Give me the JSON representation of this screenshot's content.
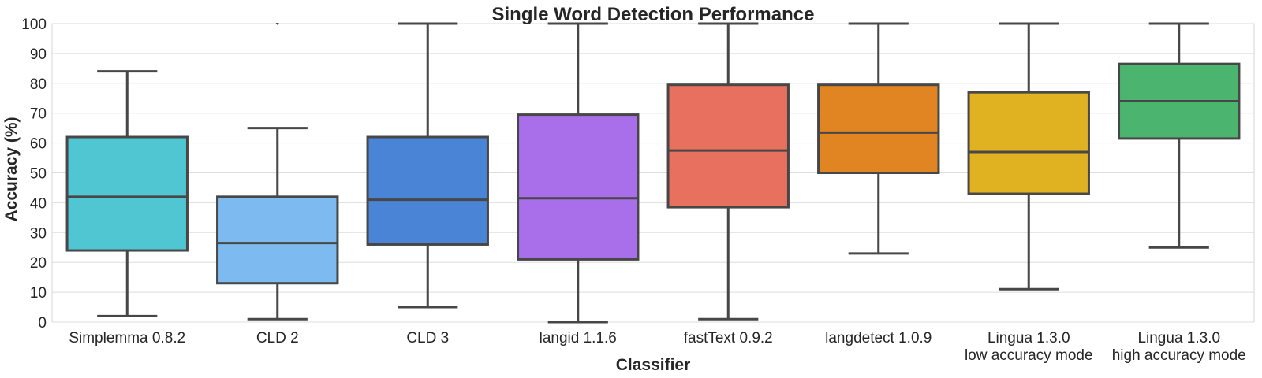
{
  "chart_data": {
    "type": "box",
    "title": "Single Word Detection Performance",
    "xlabel": "Classifier",
    "ylabel": "Accuracy (%)",
    "ylim": [
      0,
      100
    ],
    "yticks": [
      0,
      10,
      20,
      30,
      40,
      50,
      60,
      70,
      80,
      90,
      100
    ],
    "grid": "horizontal",
    "categories": [
      {
        "label": [
          "Simplemma 0.8.2"
        ],
        "color": "#4fc6d1",
        "whisker_low": 2,
        "q1": 24,
        "median": 42,
        "q3": 62,
        "whisker_high": 84,
        "outliers": []
      },
      {
        "label": [
          "CLD 2"
        ],
        "color": "#7cbaf0",
        "whisker_low": 1,
        "q1": 13,
        "median": 26.5,
        "q3": 42,
        "whisker_high": 65,
        "outliers": [
          100
        ]
      },
      {
        "label": [
          "CLD 3"
        ],
        "color": "#4a84d6",
        "whisker_low": 5,
        "q1": 26,
        "median": 41,
        "q3": 62,
        "whisker_high": 100,
        "outliers": []
      },
      {
        "label": [
          "langid 1.1.6"
        ],
        "color": "#a96ee9",
        "whisker_low": 0,
        "q1": 21,
        "median": 41.5,
        "q3": 69.5,
        "whisker_high": 100,
        "outliers": []
      },
      {
        "label": [
          "fastText 0.9.2"
        ],
        "color": "#e8705e",
        "whisker_low": 1,
        "q1": 38.5,
        "median": 57.5,
        "q3": 79.5,
        "whisker_high": 100,
        "outliers": []
      },
      {
        "label": [
          "langdetect 1.0.9"
        ],
        "color": "#e08522",
        "whisker_low": 23,
        "q1": 50,
        "median": 63.5,
        "q3": 79.5,
        "whisker_high": 100,
        "outliers": []
      },
      {
        "label": [
          "Lingua 1.3.0",
          "low accuracy mode"
        ],
        "color": "#e0b222",
        "whisker_low": 11,
        "q1": 43,
        "median": 57,
        "q3": 77,
        "whisker_high": 100,
        "outliers": []
      },
      {
        "label": [
          "Lingua 1.3.0",
          "high accuracy mode"
        ],
        "color": "#4bb56f",
        "whisker_low": 25,
        "q1": 61.5,
        "median": 74,
        "q3": 86.5,
        "whisker_high": 100,
        "outliers": []
      }
    ]
  }
}
